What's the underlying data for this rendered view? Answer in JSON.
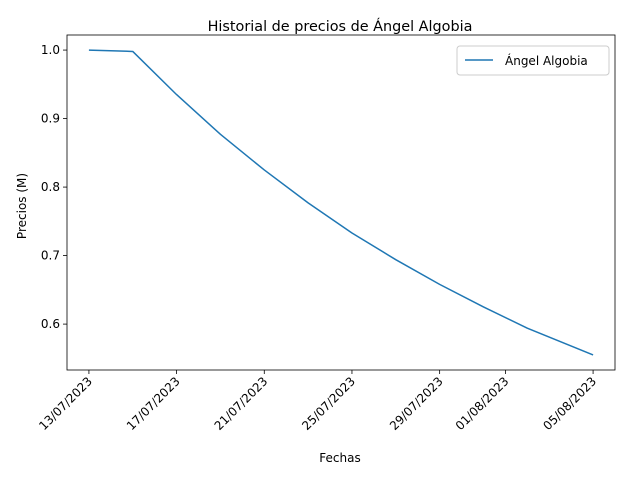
{
  "chart_data": {
    "type": "line",
    "title": "Historial de precios de Ángel Algobia",
    "xlabel": "Fechas",
    "ylabel": "Precios (M)",
    "x_tick_labels": [
      "13/07/2023",
      "17/07/2023",
      "21/07/2023",
      "25/07/2023",
      "29/07/2023",
      "01/08/2023",
      "05/08/2023"
    ],
    "x_tick_dates": [
      "2023-07-13",
      "2023-07-17",
      "2023-07-21",
      "2023-07-25",
      "2023-07-29",
      "2023-08-01",
      "2023-08-05"
    ],
    "xlim": [
      "2023-07-12",
      "2023-08-06"
    ],
    "y_ticks": [
      0.6,
      0.7,
      0.8,
      0.9,
      1.0
    ],
    "ylim": [
      0.533,
      1.022
    ],
    "grid": false,
    "legend_position": "top-right",
    "series": [
      {
        "name": "Ángel Algobia",
        "color": "#1f77b4",
        "x": [
          "2023-07-13",
          "2023-07-15",
          "2023-07-17",
          "2023-07-19",
          "2023-07-21",
          "2023-07-23",
          "2023-07-25",
          "2023-07-27",
          "2023-07-29",
          "2023-07-31",
          "2023-08-02",
          "2023-08-05"
        ],
        "y": [
          1.0,
          0.998,
          0.935,
          0.877,
          0.825,
          0.777,
          0.733,
          0.694,
          0.658,
          0.625,
          0.594,
          0.555
        ]
      }
    ]
  }
}
